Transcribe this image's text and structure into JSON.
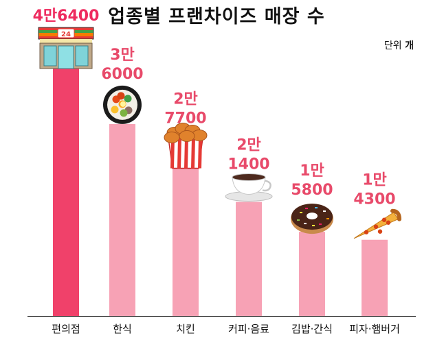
{
  "title": "업종별 프랜차이즈 매장 수",
  "unit": {
    "label": "단위",
    "value": "개"
  },
  "colors": {
    "highlight_bar": "#f0416a",
    "bar": "#f7a2b5",
    "highlight_label": "#ee2a5e",
    "label": "#e84a6a",
    "axis": "#333333",
    "category_text": "#111111"
  },
  "chart_data": {
    "type": "bar",
    "title": "업종별 프랜차이즈 매장 수",
    "unit": "개",
    "ylim": [
      0,
      48000
    ],
    "grid": false,
    "categories": [
      "편의점",
      "한식",
      "치킨",
      "커피·음료",
      "김밥·간식",
      "피자·햄버거"
    ],
    "values": [
      46400,
      36000,
      27700,
      21400,
      15800,
      14300
    ],
    "value_labels": [
      [
        "4만6400"
      ],
      [
        "3만",
        "6000"
      ],
      [
        "2만",
        "7700"
      ],
      [
        "2만",
        "1400"
      ],
      [
        "1만",
        "5800"
      ],
      [
        "1만",
        "4300"
      ]
    ],
    "icons": [
      "convenience-store-icon",
      "bibimbap-icon",
      "fried-chicken-icon",
      "coffee-cup-icon",
      "donut-icon",
      "pizza-slice-icon"
    ],
    "store_sign_text": "24"
  }
}
